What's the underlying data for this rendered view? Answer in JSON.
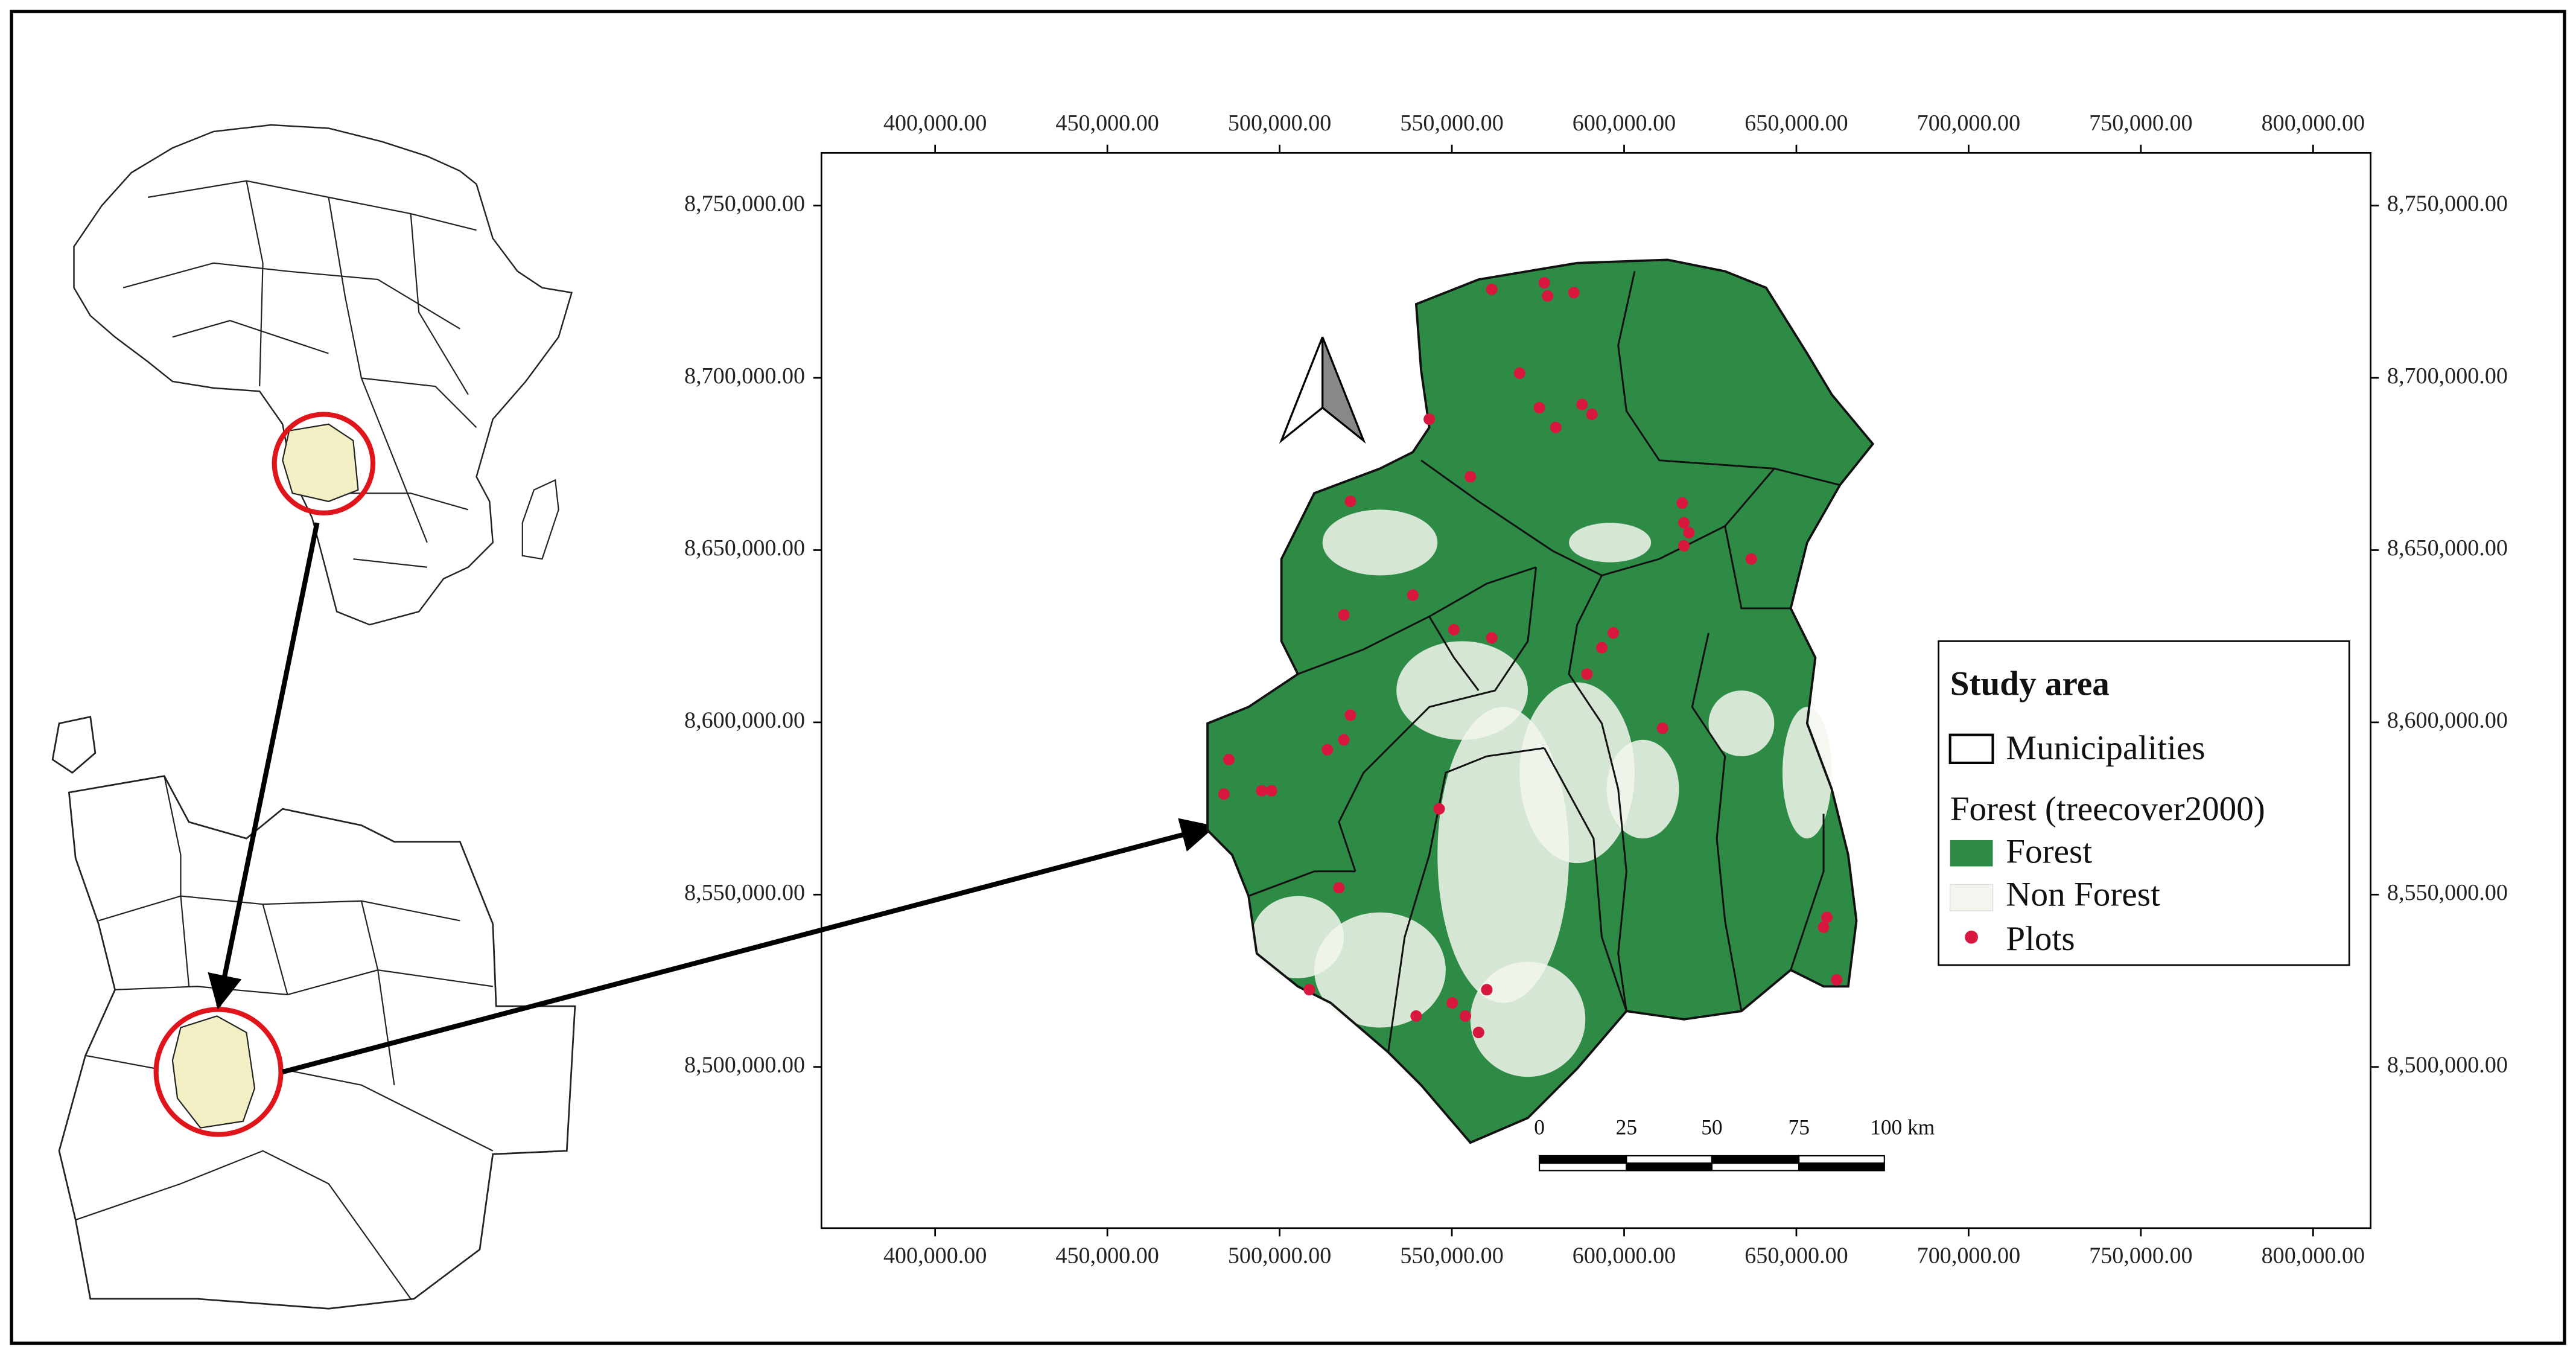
{
  "map": {
    "xlim": [
      367000,
      816700
    ],
    "ylim": [
      8453200,
      8765300
    ],
    "xticks": [
      {
        "value": 400000,
        "label": "400,000.00"
      },
      {
        "value": 450000,
        "label": "450,000.00"
      },
      {
        "value": 500000,
        "label": "500,000.00"
      },
      {
        "value": 550000,
        "label": "550,000.00"
      },
      {
        "value": 600000,
        "label": "600,000.00"
      },
      {
        "value": 650000,
        "label": "650,000.00"
      },
      {
        "value": 700000,
        "label": "700,000.00"
      },
      {
        "value": 750000,
        "label": "750,000.00"
      },
      {
        "value": 800000,
        "label": "800,000.00"
      }
    ],
    "yticks": [
      {
        "value": 8500000,
        "label": "8,500,000.00"
      },
      {
        "value": 8550000,
        "label": "8,550,000.00"
      },
      {
        "value": 8600000,
        "label": "8,600,000.00"
      },
      {
        "value": 8650000,
        "label": "8,650,000.00"
      },
      {
        "value": 8700000,
        "label": "8,700,000.00"
      },
      {
        "value": 8750000,
        "label": "8,750,000.00"
      }
    ],
    "legend": {
      "title": "Study area",
      "boundary": "Municipalities",
      "subtitle": "Forest (treecover2000)",
      "items": [
        {
          "label": "Forest",
          "color": "#2e8b46"
        },
        {
          "label": "Non Forest",
          "color": "#f3f6ee"
        },
        {
          "label": "Plots",
          "color": "#d8173f"
        }
      ]
    },
    "scale_bar": [
      "0",
      "25",
      "50",
      "75",
      "100 km"
    ]
  }
}
